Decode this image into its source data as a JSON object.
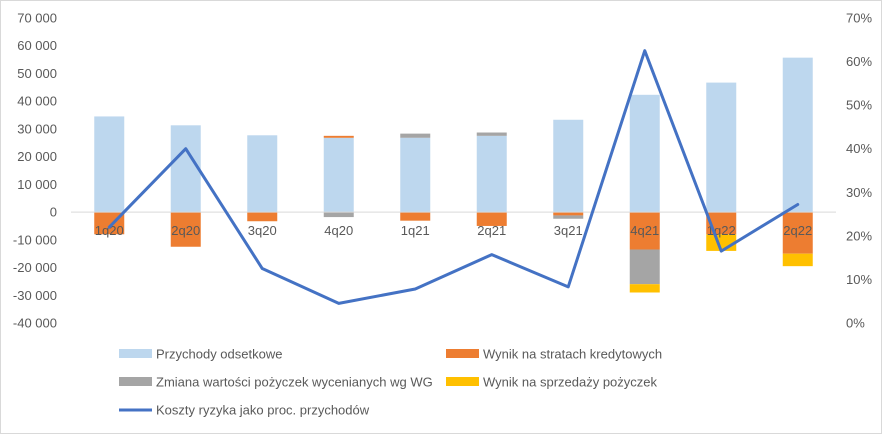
{
  "chart_data": {
    "type": "bar",
    "categories": [
      "1q20",
      "2q20",
      "3q20",
      "4q20",
      "1q21",
      "2q21",
      "3q21",
      "4q21",
      "1q22",
      "2q22"
    ],
    "y_left": {
      "range": [
        -40000,
        70000
      ],
      "ticks": [
        -40000,
        -30000,
        -20000,
        -10000,
        0,
        10000,
        20000,
        30000,
        40000,
        50000,
        60000,
        70000
      ],
      "tick_labels": [
        "-40 000",
        "-30 000",
        "-20 000",
        "-10 000",
        "0",
        "10 000",
        "20 000",
        "30 000",
        "40 000",
        "50 000",
        "60 000",
        "70 000"
      ]
    },
    "y_right": {
      "range": [
        0,
        0.7
      ],
      "ticks": [
        0,
        0.1,
        0.2,
        0.3,
        0.4,
        0.5,
        0.6,
        0.7
      ],
      "tick_labels": [
        "0%",
        "10%",
        "20%",
        "30%",
        "40%",
        "50%",
        "60%",
        "70%"
      ]
    },
    "series": [
      {
        "name": "Przychody odsetkowe",
        "type": "bar",
        "axis": "left",
        "color": "#BDD7EE",
        "values": [
          34500,
          31300,
          27700,
          26800,
          26800,
          27500,
          33300,
          42300,
          46700,
          55700
        ]
      },
      {
        "name": "Wynik na stratach kredytowych",
        "type": "bar",
        "axis": "left",
        "color": "#ED7D31",
        "values": [
          -8000,
          -12500,
          -3300,
          700,
          -3100,
          -5000,
          -1200,
          -13500,
          -8000,
          -15000
        ]
      },
      {
        "name": "Zmiana wartości pożyczek wycenianych wg WG",
        "type": "bar",
        "axis": "left",
        "color": "#A5A5A5",
        "values": [
          0,
          0,
          0,
          -1800,
          1500,
          1200,
          -1200,
          -12500,
          0,
          0
        ]
      },
      {
        "name": "Wynik na sprzedaży pożyczek",
        "type": "bar",
        "axis": "left",
        "color": "#FFC000",
        "values": [
          0,
          0,
          0,
          0,
          0,
          0,
          0,
          -3000,
          -6000,
          -4500
        ]
      },
      {
        "name": "Koszty ryzyka jako proc. przychodów",
        "type": "line",
        "axis": "right",
        "color": "#4472C4",
        "values": [
          0.22,
          0.4,
          0.125,
          0.045,
          0.078,
          0.157,
          0.083,
          0.625,
          0.165,
          0.272
        ]
      }
    ],
    "legend_placement": "bottom",
    "grid": false
  }
}
